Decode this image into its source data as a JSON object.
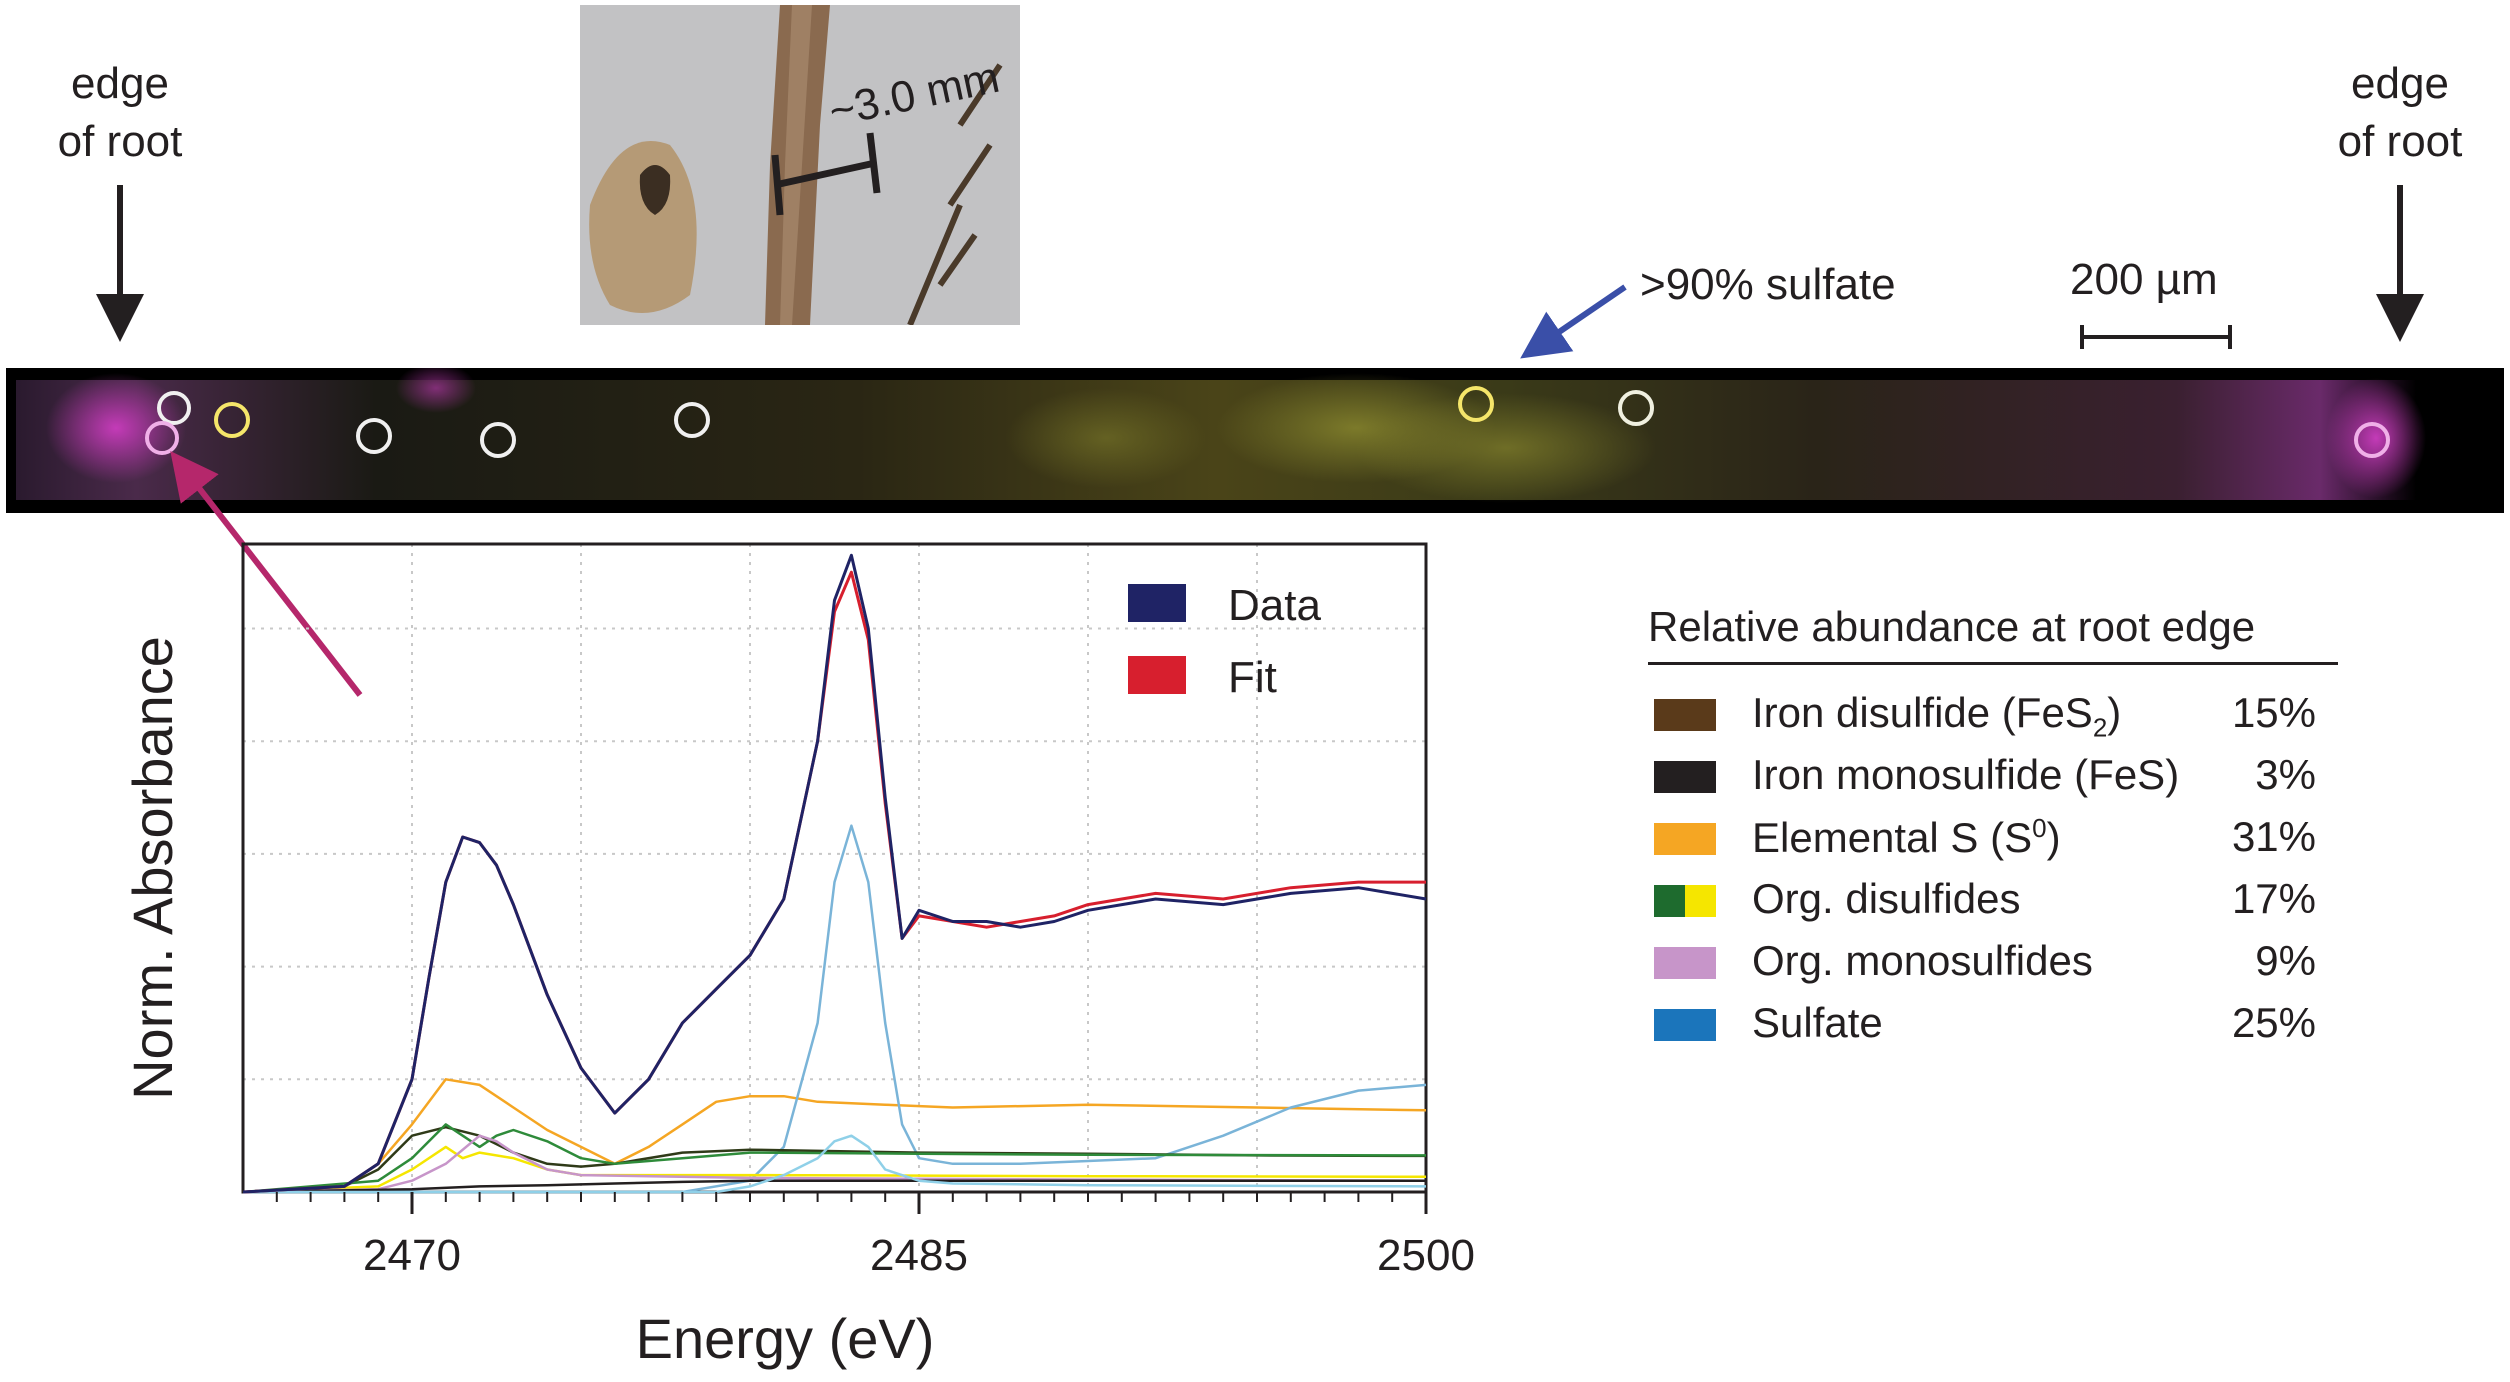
{
  "annotations": {
    "edge_left": "edge\nof root",
    "edge_right": "edge\nof root",
    "sulfate_note": ">90% sulfate",
    "scale_bar": "200 µm",
    "photo_scale": "~3.0 mm"
  },
  "legend": {
    "title": "Relative abundance at root edge",
    "items": [
      {
        "name": "Iron disulfide (FeS",
        "sub": "2",
        "tail": ")",
        "pct": "15%",
        "color": "#5a3a1a"
      },
      {
        "name": "Iron monosulfide (FeS)",
        "pct": "3%",
        "color": "#231f20"
      },
      {
        "name": "Elemental S (S",
        "sup": "0",
        "tail": ")",
        "pct": "31%",
        "color": "#f5a623"
      },
      {
        "name": "Org. disulfides",
        "pct": "17%",
        "color": "#1e6b2e",
        "color2": "#f5e600"
      },
      {
        "name": "Org. monosulfides",
        "pct": "9%",
        "color": "#c795c9"
      },
      {
        "name": "Sulfate",
        "pct": "25%",
        "color": "#1b75bb"
      }
    ]
  },
  "chart_data": {
    "type": "line",
    "xlabel": "Energy (eV)",
    "ylabel": "Norm. Absorbance",
    "xticks": [
      2470,
      2485,
      2500
    ],
    "xlim": [
      2465,
      2500
    ],
    "ylim": [
      0,
      1.15
    ],
    "grid": true,
    "legend": {
      "placement": "top-right",
      "entries": [
        "Data",
        "Fit"
      ]
    },
    "series": [
      {
        "name": "Data",
        "color": "#1f2365",
        "x": [
          2465,
          2468,
          2469,
          2470,
          2470.5,
          2471,
          2471.5,
          2472,
          2472.5,
          2473,
          2474,
          2475,
          2476,
          2477,
          2478,
          2479,
          2480,
          2481,
          2482,
          2482.5,
          2483,
          2483.5,
          2484,
          2484.5,
          2485,
          2486,
          2487,
          2488,
          2489,
          2490,
          2492,
          2494,
          2496,
          2498,
          2500
        ],
        "y": [
          0,
          0.01,
          0.05,
          0.2,
          0.38,
          0.55,
          0.63,
          0.62,
          0.58,
          0.51,
          0.35,
          0.22,
          0.14,
          0.2,
          0.3,
          0.36,
          0.42,
          0.52,
          0.8,
          1.05,
          1.13,
          1.0,
          0.7,
          0.45,
          0.5,
          0.48,
          0.48,
          0.47,
          0.48,
          0.5,
          0.52,
          0.51,
          0.53,
          0.54,
          0.52
        ]
      },
      {
        "name": "Fit",
        "color": "#d71f2e",
        "x": [
          2465,
          2468,
          2469,
          2470,
          2470.5,
          2471,
          2471.5,
          2472,
          2472.5,
          2473,
          2474,
          2475,
          2476,
          2477,
          2478,
          2479,
          2480,
          2481,
          2482,
          2482.5,
          2483,
          2483.5,
          2484,
          2484.5,
          2485,
          2486,
          2487,
          2488,
          2489,
          2490,
          2492,
          2494,
          2496,
          2498,
          2500
        ],
        "y": [
          0,
          0.01,
          0.05,
          0.2,
          0.38,
          0.55,
          0.63,
          0.62,
          0.58,
          0.51,
          0.35,
          0.22,
          0.14,
          0.2,
          0.3,
          0.36,
          0.42,
          0.52,
          0.8,
          1.03,
          1.1,
          0.98,
          0.69,
          0.45,
          0.49,
          0.48,
          0.47,
          0.48,
          0.49,
          0.51,
          0.53,
          0.52,
          0.54,
          0.55,
          0.55
        ]
      },
      {
        "color": "#f5a623",
        "x": [
          2465,
          2468,
          2469,
          2470,
          2471,
          2472,
          2473,
          2474,
          2475,
          2476,
          2477,
          2478,
          2479,
          2480,
          2481,
          2482,
          2484,
          2486,
          2490,
          2495,
          2500
        ],
        "y": [
          0,
          0.01,
          0.05,
          0.12,
          0.2,
          0.19,
          0.15,
          0.11,
          0.08,
          0.05,
          0.08,
          0.12,
          0.16,
          0.17,
          0.17,
          0.16,
          0.155,
          0.15,
          0.155,
          0.15,
          0.145
        ]
      },
      {
        "color": "#7ab4d8",
        "x": [
          2465,
          2478,
          2480,
          2481,
          2482,
          2482.5,
          2483,
          2483.5,
          2484,
          2484.5,
          2485,
          2486,
          2488,
          2490,
          2492,
          2494,
          2496,
          2498,
          2500
        ],
        "y": [
          0,
          0,
          0.02,
          0.08,
          0.3,
          0.55,
          0.65,
          0.55,
          0.3,
          0.12,
          0.06,
          0.05,
          0.05,
          0.055,
          0.06,
          0.1,
          0.15,
          0.18,
          0.19
        ]
      },
      {
        "color": "#2f3a18",
        "x": [
          2465,
          2468,
          2469,
          2470,
          2471,
          2472,
          2473,
          2474,
          2475,
          2476,
          2478,
          2480,
          2485,
          2490,
          2495,
          2500
        ],
        "y": [
          0,
          0.01,
          0.04,
          0.1,
          0.115,
          0.1,
          0.07,
          0.05,
          0.045,
          0.05,
          0.07,
          0.075,
          0.07,
          0.068,
          0.065,
          0.064
        ]
      },
      {
        "color": "#2e8b3a",
        "x": [
          2465,
          2469,
          2470,
          2471,
          2471.5,
          2472,
          2472.5,
          2473,
          2474,
          2475,
          2476,
          2478,
          2480,
          2485,
          2490,
          2500
        ],
        "y": [
          0,
          0.02,
          0.06,
          0.12,
          0.1,
          0.08,
          0.1,
          0.11,
          0.09,
          0.06,
          0.05,
          0.06,
          0.07,
          0.068,
          0.066,
          0.065
        ]
      },
      {
        "color": "#f5e600",
        "x": [
          2465,
          2469,
          2470,
          2471,
          2471.5,
          2472,
          2473,
          2474,
          2475,
          2480,
          2490,
          2500
        ],
        "y": [
          0,
          0.01,
          0.04,
          0.08,
          0.06,
          0.07,
          0.06,
          0.04,
          0.03,
          0.03,
          0.028,
          0.027
        ]
      },
      {
        "color": "#c795c9",
        "x": [
          2465,
          2469,
          2470,
          2471,
          2472,
          2472.5,
          2473,
          2474,
          2475,
          2480,
          2490,
          2500
        ],
        "y": [
          0,
          0.005,
          0.02,
          0.05,
          0.1,
          0.09,
          0.07,
          0.04,
          0.03,
          0.025,
          0.022,
          0.02
        ]
      },
      {
        "color": "#231f20",
        "x": [
          2465,
          2470,
          2472,
          2474,
          2476,
          2478,
          2480,
          2485,
          2490,
          2500
        ],
        "y": [
          0,
          0.005,
          0.01,
          0.012,
          0.015,
          0.018,
          0.02,
          0.02,
          0.02,
          0.02
        ]
      },
      {
        "color": "#8fd0e8",
        "x": [
          2465,
          2479,
          2480,
          2481,
          2482,
          2482.5,
          2483,
          2483.5,
          2484,
          2485,
          2486,
          2490,
          2500
        ],
        "y": [
          0,
          0,
          0.01,
          0.03,
          0.06,
          0.09,
          0.1,
          0.08,
          0.04,
          0.02,
          0.015,
          0.012,
          0.01
        ]
      }
    ]
  }
}
